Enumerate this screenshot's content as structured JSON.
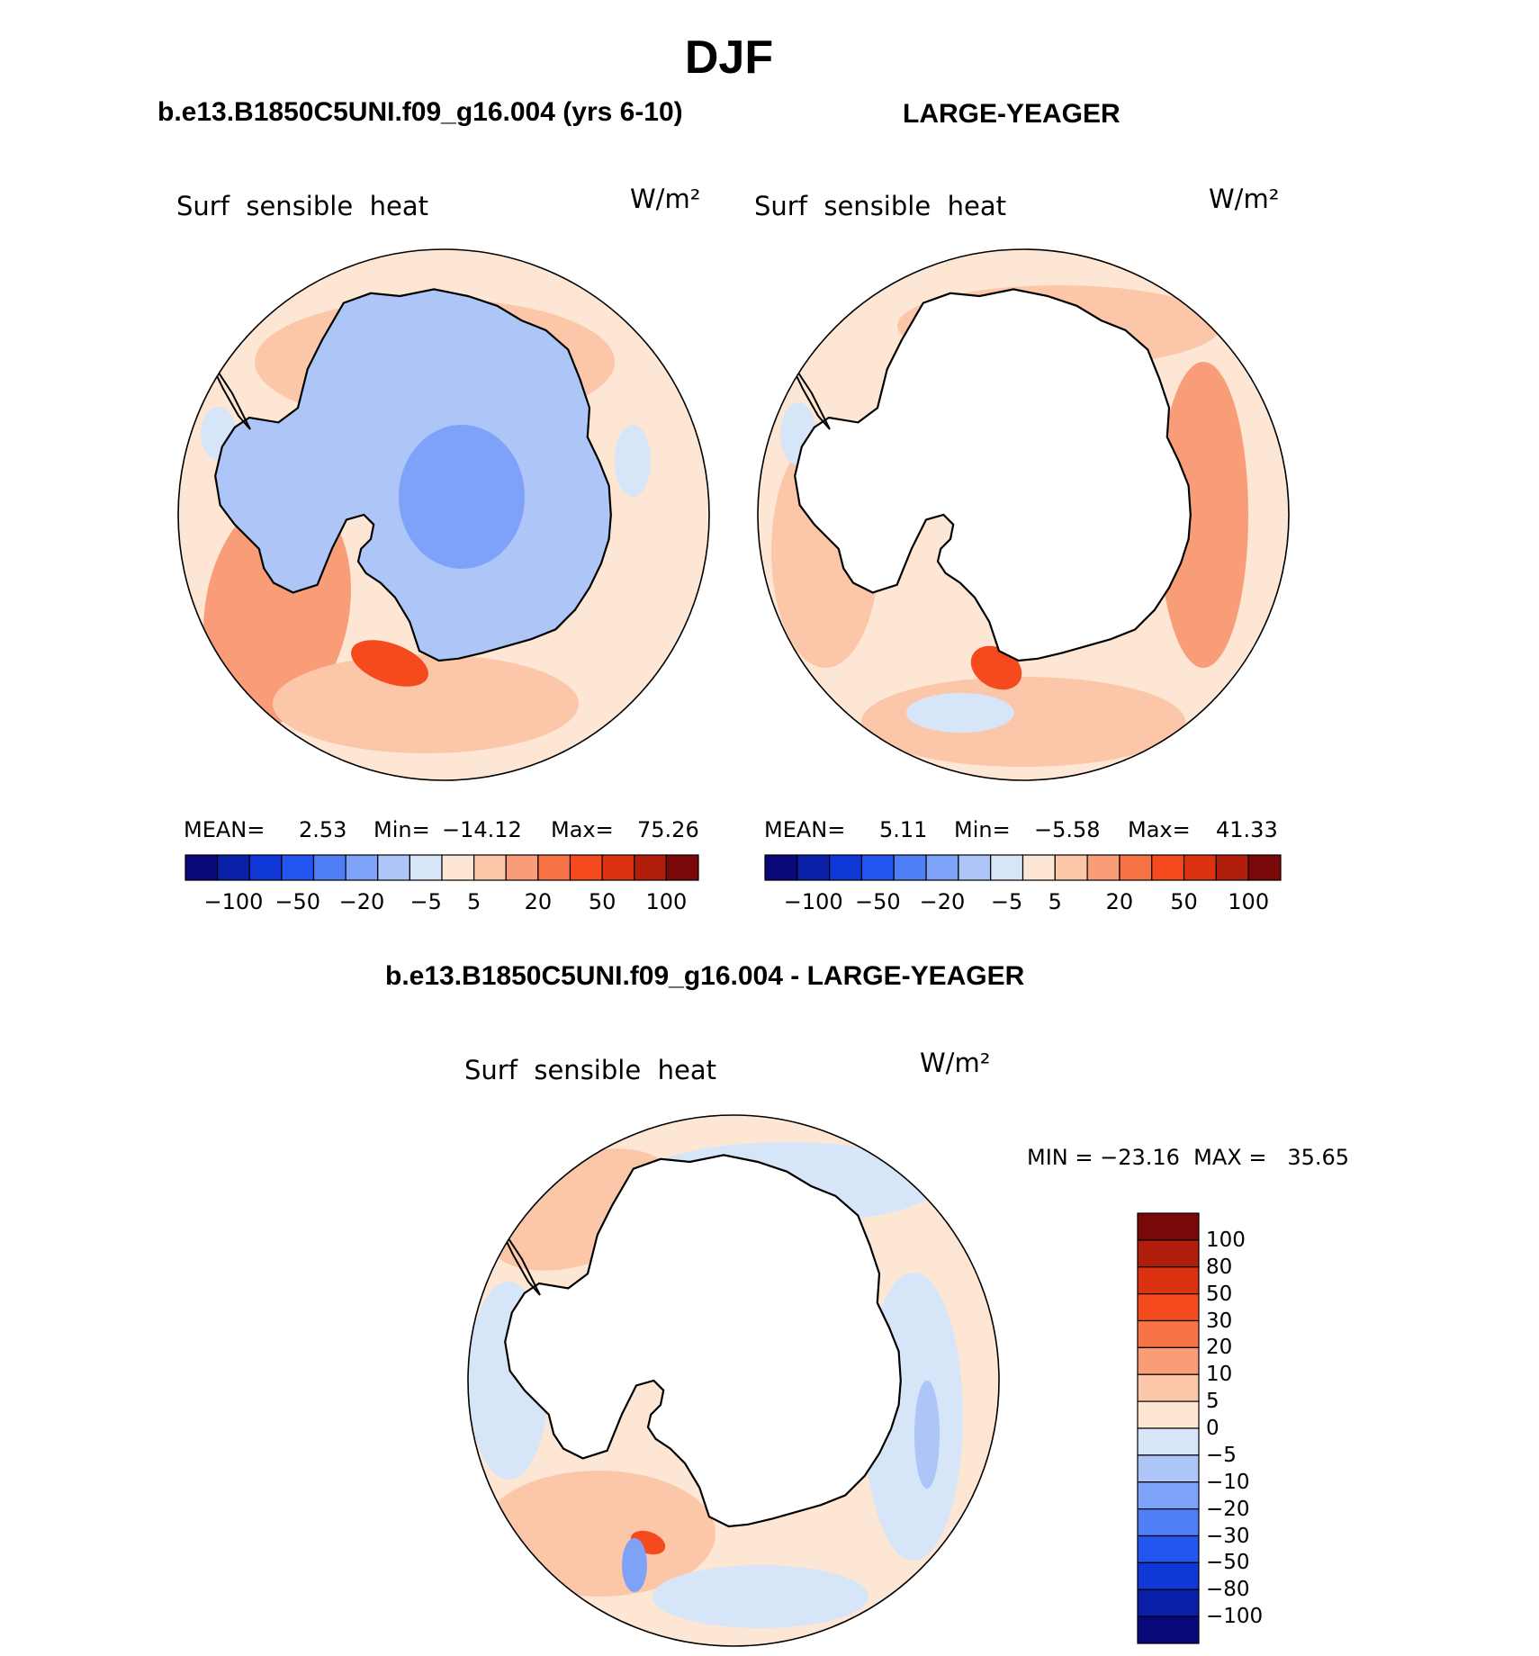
{
  "main_title": "DJF",
  "panels": [
    {
      "heading": "b.e13.B1850C5UNI.f09_g16.004 (yrs 6-10)",
      "field": "Surf  sensible  heat",
      "units": "W/m²",
      "stats": {
        "mean_label": "MEAN=",
        "mean": "2.53",
        "min_label": "Min=",
        "min": "−14.12",
        "max_label": "Max=",
        "max": "75.26"
      },
      "colorbar_labels": [
        "−100",
        "−50",
        "−20",
        "−5",
        "5",
        "20",
        "50",
        "100"
      ]
    },
    {
      "heading": "LARGE-YEAGER",
      "field": "Surf  sensible  heat",
      "units": "W/m²",
      "stats": {
        "mean_label": "MEAN=",
        "mean": "5.11",
        "min_label": "Min=",
        "min": "−5.58",
        "max_label": "Max=",
        "max": "41.33"
      },
      "colorbar_labels": [
        "−100",
        "−50",
        "−20",
        "−5",
        "5",
        "20",
        "50",
        "100"
      ]
    }
  ],
  "diff_panel": {
    "heading": "b.e13.B1850C5UNI.f09_g16.004 - LARGE-YEAGER",
    "field": "Surf  sensible  heat",
    "units": "W/m²",
    "minmax": "MIN = −23.16  MAX =   35.65",
    "colorbar_labels": [
      "100",
      "80",
      "50",
      "30",
      "20",
      "10",
      "5",
      "0",
      "−5",
      "−10",
      "−20",
      "−30",
      "−50",
      "−80",
      "−100"
    ]
  },
  "colors": {
    "abs_scale": [
      "#08087a",
      "#0a1fa8",
      "#0f38d6",
      "#2356f0",
      "#4f7ef7",
      "#7ea2f7",
      "#aec5f7",
      "#d6e6f8",
      "#fde6d3",
      "#fcc6a9",
      "#f99c78",
      "#f77345",
      "#f54a1e",
      "#dc3210",
      "#b01d0a",
      "#7a0808"
    ],
    "diff_scale": [
      "#7a0808",
      "#b01d0a",
      "#dc3210",
      "#f54a1e",
      "#f77345",
      "#f99c78",
      "#fcc6a9",
      "#fde6d3",
      "#d6e6f8",
      "#aec5f7",
      "#7ea2f7",
      "#4f7ef7",
      "#2356f0",
      "#0f38d6",
      "#0a1fa8",
      "#08087a"
    ],
    "ocean_light": "#fde6d3",
    "ocean_warm": "#fcc6a9",
    "ocean_warmer": "#f99c78",
    "ocean_hot": "#f54a1e",
    "ice_blue": "#aec5f7",
    "ice_blue2": "#7ea2f7",
    "cold_light": "#d6e6f8",
    "land_white": "#ffffff"
  }
}
